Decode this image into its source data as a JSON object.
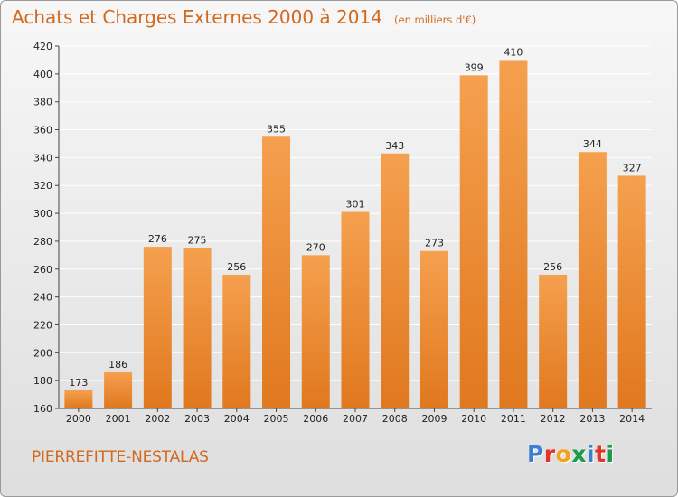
{
  "title": "Achats et Charges Externes 2000 à 2014",
  "subtitle": "(en milliers d'€)",
  "commune": "PIERREFITTE-NESTALAS",
  "logo": {
    "letters": [
      {
        "ch": "P",
        "color": "#3a7fd0"
      },
      {
        "ch": "r",
        "color": "#e0342a"
      },
      {
        "ch": "o",
        "color": "#f2a21b"
      },
      {
        "ch": "x",
        "color": "#1a9c4a"
      },
      {
        "ch": "i",
        "color": "#3a7fd0"
      },
      {
        "ch": "t",
        "color": "#e0342a"
      },
      {
        "ch": "i",
        "color": "#1a9c4a"
      }
    ]
  },
  "colors": {
    "accent": "#d2691e",
    "bar_top": "#f5a04e",
    "bar_bottom": "#e0781e",
    "grid": "#ffffff"
  },
  "chart_data": {
    "type": "bar",
    "categories": [
      "2000",
      "2001",
      "2002",
      "2003",
      "2004",
      "2005",
      "2006",
      "2007",
      "2008",
      "2009",
      "2010",
      "2011",
      "2012",
      "2013",
      "2014"
    ],
    "values": [
      173,
      186,
      276,
      275,
      256,
      355,
      270,
      301,
      343,
      273,
      399,
      410,
      256,
      344,
      327
    ],
    "ylim": [
      160,
      420
    ],
    "yticks": [
      160,
      180,
      200,
      220,
      240,
      260,
      280,
      300,
      320,
      340,
      360,
      380,
      400,
      420
    ],
    "grid": true
  }
}
